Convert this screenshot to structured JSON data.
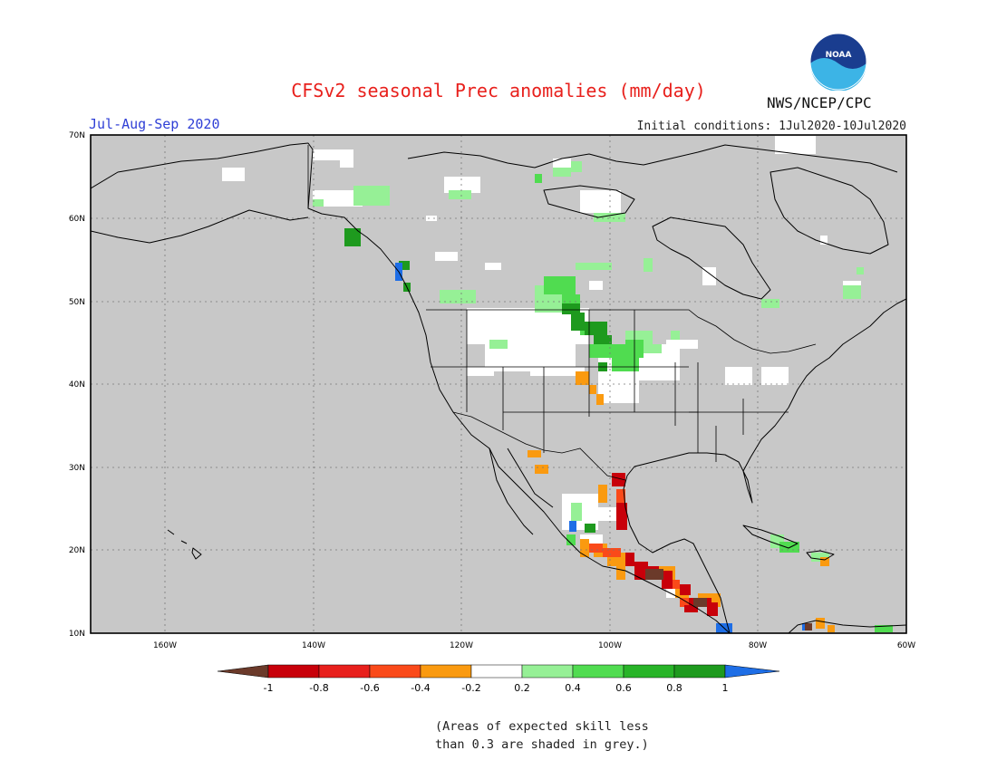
{
  "title": "CFSv2 seasonal Prec anomalies (mm/day)",
  "season": "Jul-Aug-Sep 2020",
  "initial_conditions": "Initial conditions: 1Jul2020-10Jul2020",
  "agency": "NWS/NCEP/CPC",
  "logo_text": "NOAA",
  "lat_labels": [
    "70N",
    "60N",
    "50N",
    "40N",
    "30N",
    "20N",
    "10N"
  ],
  "lon_labels": [
    "160W",
    "140W",
    "120W",
    "100W",
    "80W",
    "60W"
  ],
  "colorbar": {
    "labels": [
      "-1",
      "-0.8",
      "-0.6",
      "-0.4",
      "-0.2",
      "0.2",
      "0.4",
      "0.6",
      "0.8",
      "1"
    ],
    "colors": {
      "lt_neg1": "#6b3a2a",
      "neg1_neg08": "#c8000a",
      "neg08_neg06": "#e8201c",
      "neg06_neg04": "#fa4a1a",
      "neg04_neg02": "#fa9a10",
      "neutral": "#ffffff",
      "p02_p04": "#96f096",
      "p04_p06": "#50dc50",
      "p06_p08": "#28b428",
      "p08_p1": "#1e9a1e",
      "gt_p1": "#1e6ee6"
    }
  },
  "colors": {
    "land_grey": "#c8c8c8",
    "title_red": "#e8201c",
    "season_blue": "#2f3fd6"
  },
  "note_lines": [
    "(Areas of expected skill less",
    "than 0.3 are shaded in grey.)"
  ]
}
